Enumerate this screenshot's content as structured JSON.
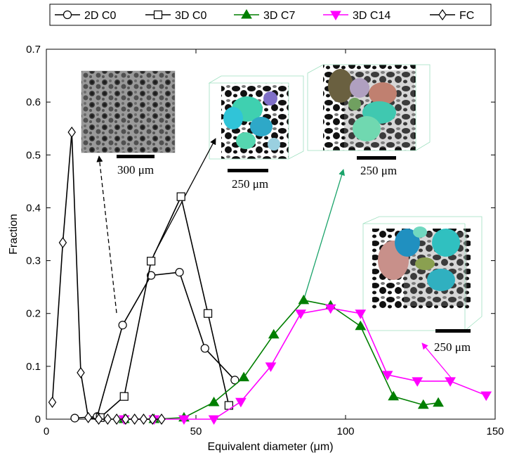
{
  "chart_data": {
    "type": "line",
    "xlabel": "Equivalent diameter (μm)",
    "ylabel": "Fraction",
    "xlim": [
      0,
      150
    ],
    "ylim": [
      0,
      0.7
    ],
    "xticks": [
      "0",
      "50",
      "100",
      "150"
    ],
    "yticks": [
      "0",
      "0.1",
      "0.2",
      "0.3",
      "0.4",
      "0.5",
      "0.6",
      "0.7"
    ],
    "grid": false,
    "legend_position": "top, outside plot, horizontal",
    "series": [
      {
        "name": "2D C0",
        "marker": "circle",
        "color": "#000000",
        "x": [
          9.5,
          17,
          25.5,
          35,
          44.5,
          53,
          63
        ],
        "y": [
          0.002,
          0.005,
          0.178,
          0.272,
          0.278,
          0.134,
          0.074
        ]
      },
      {
        "name": "3D C0",
        "marker": "square",
        "color": "#000000",
        "x": [
          18,
          26,
          35,
          45,
          54,
          61
        ],
        "y": [
          0.003,
          0.043,
          0.299,
          0.421,
          0.2,
          0.026
        ]
      },
      {
        "name": "3D C7",
        "marker": "triangle-up",
        "color": "#007f00",
        "x": [
          26,
          36,
          46,
          56,
          66,
          76,
          86,
          95,
          105,
          116,
          126,
          131
        ],
        "y": [
          0.0,
          0.0,
          0.003,
          0.032,
          0.079,
          0.16,
          0.225,
          0.215,
          0.176,
          0.043,
          0.027,
          0.031
        ]
      },
      {
        "name": "3D C14",
        "marker": "triangle-down",
        "color": "#ff00ff",
        "x": [
          26,
          36,
          46,
          56,
          65,
          75,
          85,
          95,
          105,
          114,
          124,
          135,
          147
        ],
        "y": [
          0.0,
          0.0,
          0.0,
          0.0,
          0.033,
          0.1,
          0.2,
          0.21,
          0.2,
          0.084,
          0.072,
          0.072,
          0.045
        ]
      },
      {
        "name": "FC",
        "marker": "diamond",
        "color": "#000000",
        "x": [
          2,
          5.5,
          8.5,
          11.5,
          14,
          17.5,
          20.5,
          23.5,
          26.5,
          29.5,
          32.5,
          35.5,
          38.5
        ],
        "y": [
          0.032,
          0.334,
          0.543,
          0.088,
          0.003,
          0.0,
          0.0,
          0.0,
          0.0,
          0.0,
          0.0,
          0.0,
          0.0
        ]
      }
    ],
    "annotations": {
      "sem_scale": "300 μm",
      "c0_scale": "250 μm",
      "c7_scale": "250 μm",
      "c14_scale": "250 μm"
    }
  }
}
